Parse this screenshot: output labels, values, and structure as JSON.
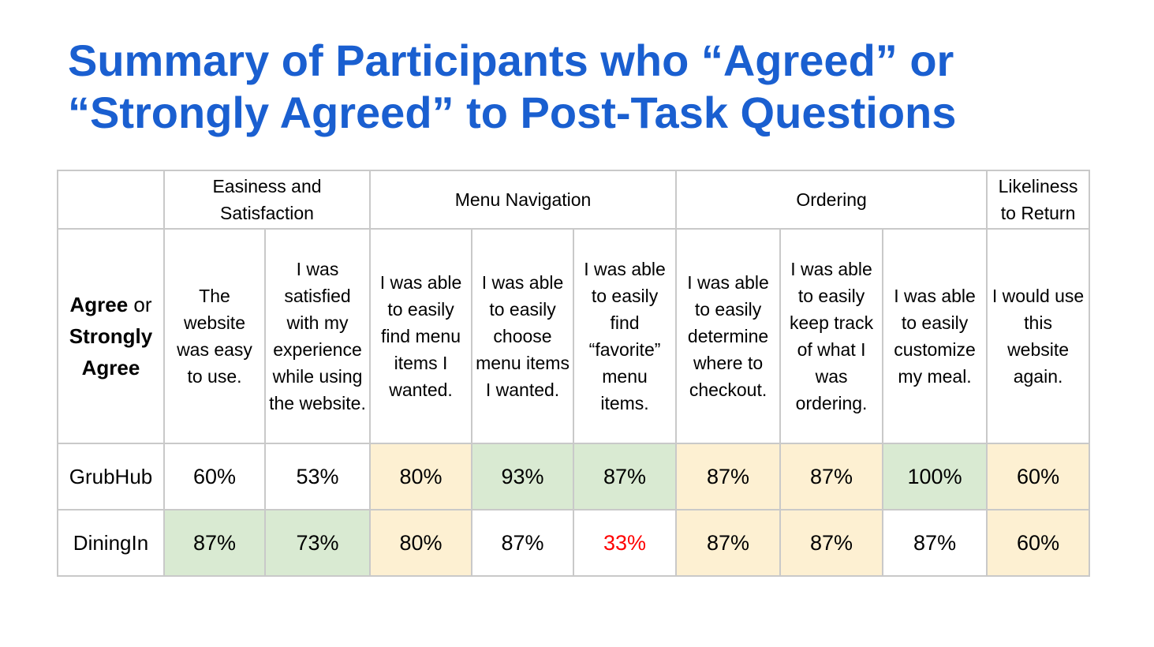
{
  "title": "Summary of Participants who “Agreed” or “Strongly Agreed” to Post-Task Questions",
  "colors": {
    "title": "#1a5fd0",
    "highlight_yellow": "#fdf0d2",
    "highlight_green": "#d9ead2",
    "low_value_text": "#ff0000",
    "border": "#c9c9c9"
  },
  "table": {
    "corner": {
      "bold1": "Agree",
      "mid": " or ",
      "bold2": "Strongly Agree"
    },
    "groups": [
      {
        "label": "Easiness and Satisfaction",
        "span": 2
      },
      {
        "label": "Menu Navigation",
        "span": 3
      },
      {
        "label": "Ordering",
        "span": 3
      },
      {
        "label": "Likeliness to Return",
        "span": 1
      }
    ],
    "questions": [
      "The website was easy to use.",
      "I was satisfied with my experience while using the website.",
      "I was able to easily find menu items I wanted.",
      "I was able to easily choose menu items I wanted.",
      "I was able to easily find “favorite” menu items.",
      "I was able to easily determine where to checkout.",
      "I was able to easily keep track of what I was ordering.",
      "I was able to easily customize my meal.",
      "I would use this website again."
    ],
    "rows": [
      {
        "name": "GrubHub",
        "values": [
          "60%",
          "53%",
          "80%",
          "93%",
          "87%",
          "87%",
          "87%",
          "100%",
          "60%"
        ],
        "highlight": [
          "none",
          "none",
          "yellow",
          "green",
          "green",
          "yellow",
          "yellow",
          "green",
          "yellow"
        ]
      },
      {
        "name": "DiningIn",
        "values": [
          "87%",
          "73%",
          "80%",
          "87%",
          "33%",
          "87%",
          "87%",
          "87%",
          "60%"
        ],
        "highlight": [
          "green",
          "green",
          "yellow",
          "none",
          "red-text",
          "yellow",
          "yellow",
          "none",
          "yellow"
        ]
      }
    ]
  }
}
